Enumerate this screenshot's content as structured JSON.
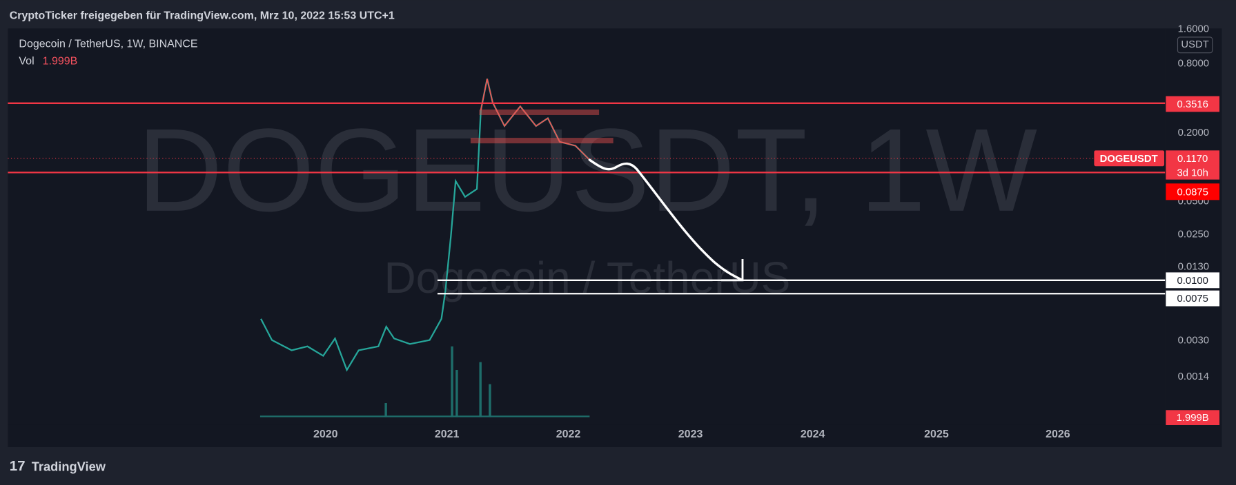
{
  "header": {
    "title": "CryptoTicker freigegeben für TradingView.com, Mrz 10, 2022 15:53 UTC+1"
  },
  "legend": {
    "symbol": "Dogecoin / TetherUS, 1W, BINANCE",
    "vol_label": "Vol",
    "vol_value": "1.999B"
  },
  "watermark": {
    "main": "DOGEUSDT, 1W",
    "sub": "Dogecoin / TetherUS"
  },
  "price_axis": {
    "currency": "USDT",
    "labels": [
      "1.6000",
      "0.8000",
      "0.2000",
      "0.0500",
      "0.0250",
      "0.0130",
      "0.0030",
      "0.0014"
    ],
    "boxes": {
      "resistance": "0.3516",
      "last": "0.1170",
      "countdown": "3d 10h",
      "symbol_tag": "DOGEUSDT",
      "support": "0.0875",
      "target_1": "0.0100",
      "target_2": "0.0075",
      "volume": "1.999B"
    }
  },
  "time_axis": {
    "labels": [
      "2020",
      "2021",
      "2022",
      "2023",
      "2024",
      "2025",
      "2026"
    ]
  },
  "footer": {
    "brand": "TradingView"
  }
}
